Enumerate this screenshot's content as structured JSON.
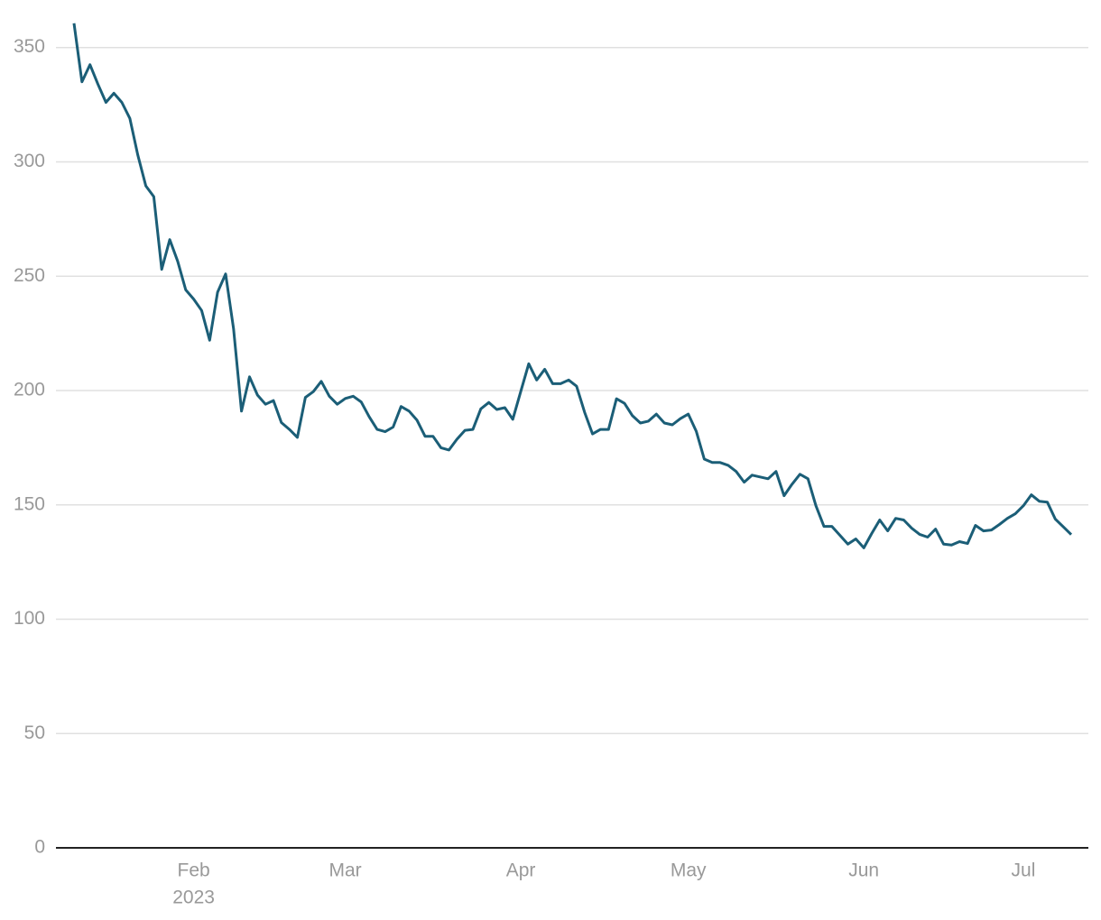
{
  "chart_data": {
    "type": "line",
    "categories": [
      null,
      null,
      null,
      null,
      null,
      null,
      null,
      null,
      null,
      null,
      null,
      null,
      null,
      null,
      null,
      "Feb",
      null,
      null,
      null,
      null,
      null,
      null,
      null,
      null,
      null,
      null,
      null,
      null,
      null,
      null,
      null,
      null,
      null,
      null,
      "Mar",
      null,
      null,
      null,
      null,
      null,
      null,
      null,
      null,
      null,
      null,
      null,
      null,
      null,
      null,
      null,
      null,
      null,
      null,
      null,
      null,
      null,
      "Apr",
      null,
      null,
      null,
      null,
      null,
      null,
      null,
      null,
      null,
      null,
      null,
      null,
      null,
      null,
      null,
      null,
      null,
      null,
      null,
      null,
      "May",
      null,
      null,
      null,
      null,
      null,
      null,
      null,
      null,
      null,
      null,
      null,
      null,
      null,
      null,
      null,
      null,
      null,
      null,
      null,
      null,
      null,
      "Jun",
      null,
      null,
      null,
      null,
      null,
      null,
      null,
      null,
      null,
      null,
      null,
      null,
      null,
      null,
      null,
      null,
      null,
      null,
      null,
      "Jul",
      null,
      null,
      null,
      null,
      null,
      null
    ],
    "x_year_label": "2023",
    "values": [
      360.6,
      335,
      342.5,
      334,
      326,
      330,
      326,
      319,
      303,
      289.5,
      284.8,
      253,
      266,
      256.5,
      244,
      240,
      235,
      222,
      243,
      251,
      227,
      191,
      206,
      198,
      194,
      195.6,
      186,
      183,
      179.5,
      197,
      199.5,
      204,
      197.5,
      194,
      196.5,
      197.5,
      195,
      188.5,
      183,
      182,
      184,
      193,
      191,
      187,
      180,
      180,
      175,
      174,
      178.7,
      182.6,
      183,
      192,
      194.8,
      191.7,
      192.5,
      187.4,
      199.5,
      211.7,
      204.6,
      209.3,
      203,
      203,
      204.6,
      201.9,
      190.5,
      181,
      183,
      183,
      196.4,
      194.4,
      189,
      185.8,
      186.6,
      189.7,
      185.8,
      185,
      187.7,
      189.7,
      182.2,
      170,
      168.5,
      168.5,
      167.3,
      164.6,
      159.9,
      163,
      162.2,
      161.4,
      164.6,
      154,
      159,
      163.4,
      161.4,
      149.6,
      140.6,
      140.6,
      136.7,
      132.8,
      135.1,
      131.2,
      137.5,
      143.4,
      138.6,
      144.1,
      143.4,
      139.8,
      137.1,
      135.9,
      139.4,
      132.8,
      132.4,
      133.9,
      133.1,
      141,
      138.6,
      139,
      141.4,
      144.1,
      146.1,
      149.6,
      154.4,
      151.6,
      151.2,
      143.8,
      140.4,
      137
    ],
    "color": "#1b5e77",
    "ylim": [
      0,
      370
    ],
    "yticks": [
      0,
      50,
      100,
      150,
      200,
      250,
      300,
      350
    ],
    "grid": true
  }
}
